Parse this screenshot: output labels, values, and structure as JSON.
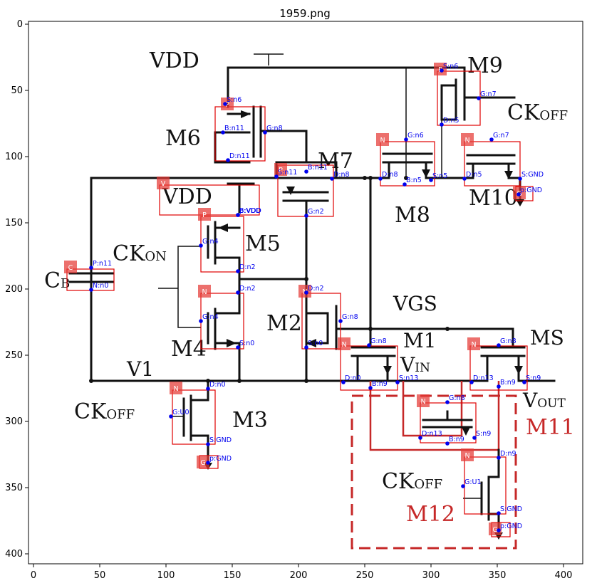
{
  "figure": {
    "title": "1959.png",
    "x_ticks": [
      "0",
      "50",
      "100",
      "150",
      "200",
      "250",
      "300",
      "350",
      "400"
    ],
    "y_ticks": [
      "0",
      "50",
      "100",
      "150",
      "200",
      "250",
      "300",
      "350",
      "400"
    ]
  },
  "schematic_labels": [
    {
      "text": "VDD",
      "id": "vdd-top"
    },
    {
      "text": "M9",
      "id": "m9"
    },
    {
      "text": "CK",
      "id": "ckoff-m9"
    },
    {
      "text": "M6",
      "id": "m6"
    },
    {
      "text": "M7",
      "id": "m7"
    },
    {
      "text": "VDD",
      "id": "vdd-mid"
    },
    {
      "text": "M8",
      "id": "m8"
    },
    {
      "text": "M10",
      "id": "m10"
    },
    {
      "text": "M5",
      "id": "m5"
    },
    {
      "text": "CK",
      "id": "ckon"
    },
    {
      "text": "C",
      "id": "cb"
    },
    {
      "text": "M2",
      "id": "m2"
    },
    {
      "text": "VGS",
      "id": "vgs"
    },
    {
      "text": "M1",
      "id": "m1"
    },
    {
      "text": "MS",
      "id": "ms"
    },
    {
      "text": "M4",
      "id": "m4"
    },
    {
      "text": "V1",
      "id": "v1"
    },
    {
      "text": "V",
      "id": "vin"
    },
    {
      "text": "V",
      "id": "vout"
    },
    {
      "text": "CK",
      "id": "ckoff-m3"
    },
    {
      "text": "M3",
      "id": "m3"
    },
    {
      "text": "M11",
      "id": "m11"
    },
    {
      "text": "CK",
      "id": "ckoff-m12"
    },
    {
      "text": "M12",
      "id": "m12"
    }
  ],
  "subscripts": {
    "off": "OFF",
    "on": "ON",
    "b": "B",
    "in": "IN",
    "out": "OUT"
  },
  "components": [
    {
      "badge": "P",
      "tags": [
        "S:n6",
        "B:n11",
        "G:n8",
        "D:n11"
      ]
    },
    {
      "badge": "P",
      "tags": [
        "S:n6",
        "G:n7",
        "D:n5"
      ]
    },
    {
      "badge": "N",
      "tags": [
        "G:n6",
        "D:n8",
        "B:n5",
        "S:n5"
      ]
    },
    {
      "badge": "N",
      "tags": [
        "G:n7",
        "D:n5",
        "S:GND"
      ]
    },
    {
      "badge": "G",
      "tags": [
        "p:GND"
      ]
    },
    {
      "badge": "P",
      "tags": [
        "S:n11",
        "B:n11",
        "D:n8",
        "G:n2"
      ]
    },
    {
      "badge": "V",
      "tags": [
        "p:VDD"
      ]
    },
    {
      "badge": "P",
      "tags": [
        "B:VDD",
        "G:n4",
        "D:n2"
      ]
    },
    {
      "badge": "C",
      "tags": [
        "P:n11",
        "N:n0"
      ]
    },
    {
      "badge": "N",
      "tags": [
        "D:n2",
        "G:n4",
        "S:n0"
      ]
    },
    {
      "badge": "N",
      "tags": [
        "D:n2",
        "G:n8",
        "S:n0"
      ]
    },
    {
      "badge": "N",
      "tags": [
        "G:n8",
        "D:n0",
        "B:n9",
        "S:n13"
      ]
    },
    {
      "badge": "N",
      "tags": [
        "G:n8",
        "D:n13",
        "B:n9",
        "S:n9"
      ]
    },
    {
      "badge": "N",
      "tags": [
        "D:n0",
        "G:U0",
        "S:GND"
      ]
    },
    {
      "badge": "G",
      "tags": [
        "p:GND"
      ]
    },
    {
      "badge": "N",
      "tags": [
        "G:n8",
        "D:n13",
        "S:n9",
        "B:n9"
      ]
    },
    {
      "badge": "N",
      "tags": [
        "D:n9",
        "G:U1",
        "S:GND"
      ]
    },
    {
      "badge": "G",
      "tags": [
        "p:GND"
      ]
    }
  ]
}
